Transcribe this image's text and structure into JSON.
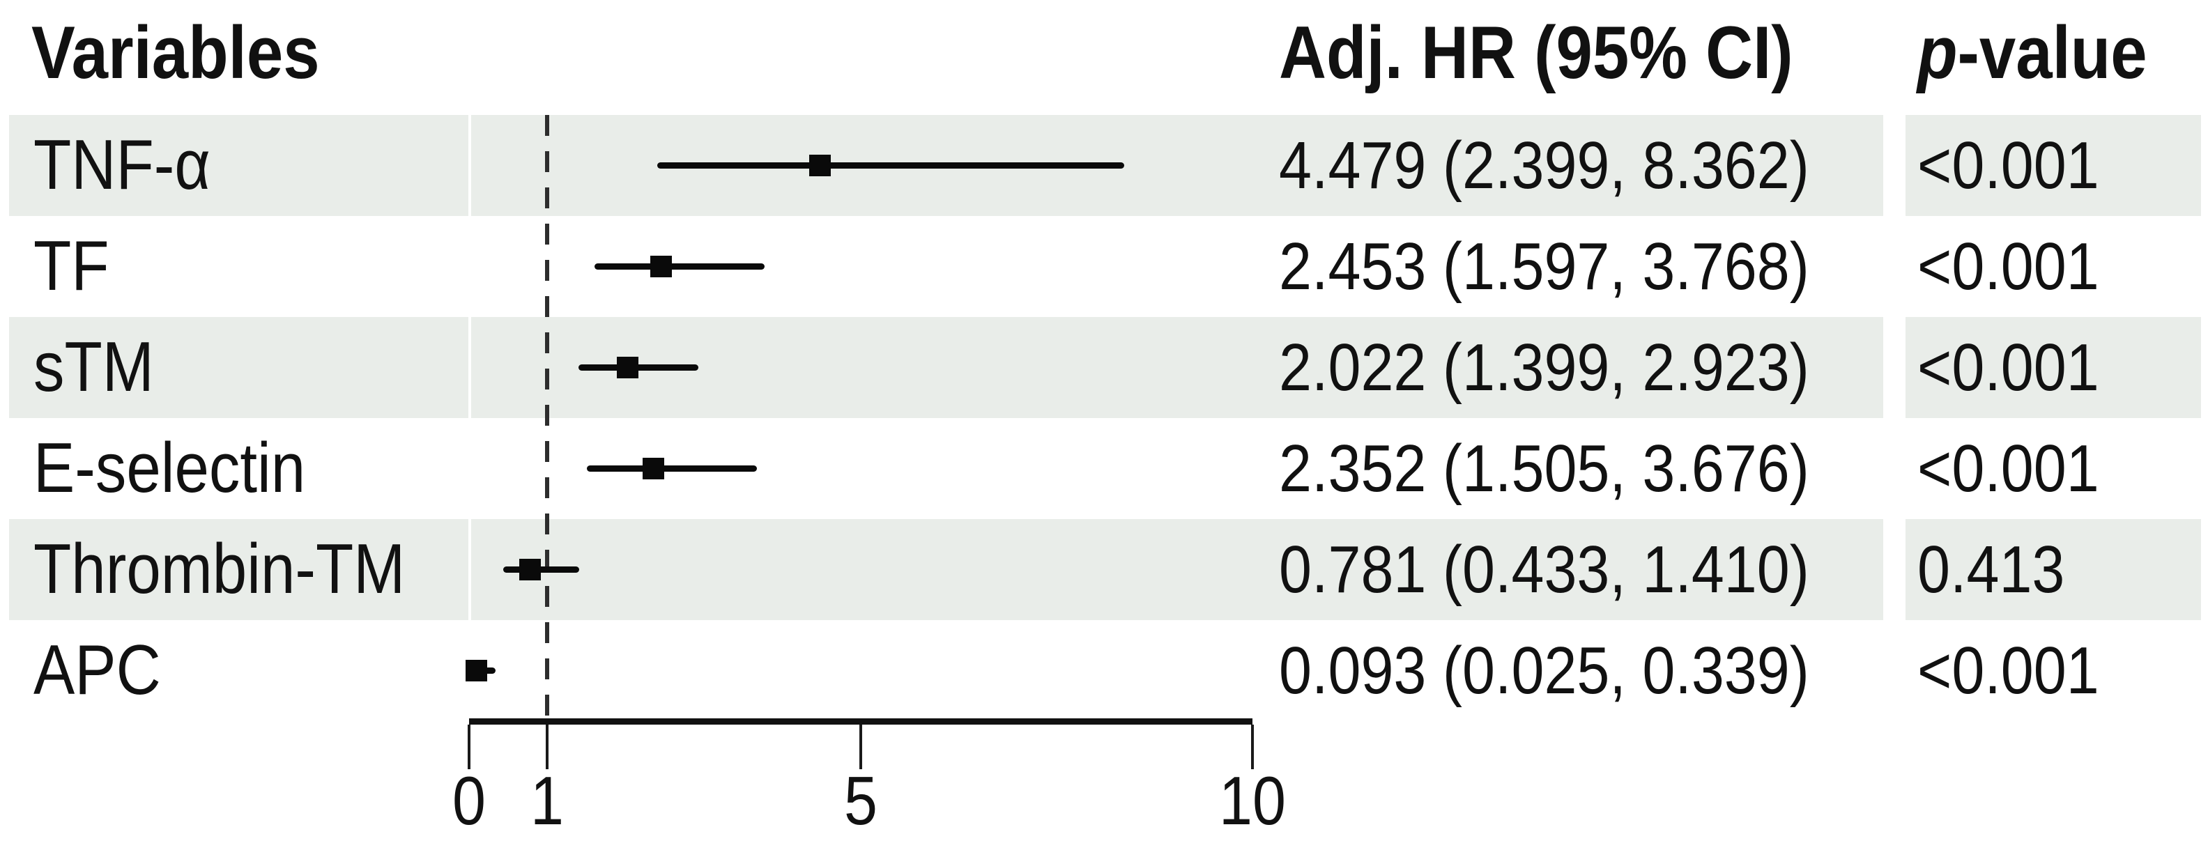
{
  "figure": {
    "background": "#ffffff",
    "stripe_color": "#e9ede9",
    "ink_color": "#111111"
  },
  "header": {
    "variables": "Variables",
    "adj_hr": "Adj. HR (95% CI)",
    "p_italic": "p",
    "p_rest": "-value"
  },
  "chart_data": {
    "type": "forest",
    "title": "",
    "columns": [
      "Variables",
      "Adj. HR (95% CI)",
      "p-value"
    ],
    "rows": [
      {
        "label": "TNF-α",
        "est": 4.479,
        "lo": 2.399,
        "hi": 8.362,
        "hr_ci": "4.479 (2.399, 8.362)",
        "p": "<0.001"
      },
      {
        "label": "TF",
        "est": 2.453,
        "lo": 1.597,
        "hi": 3.768,
        "hr_ci": "2.453 (1.597, 3.768)",
        "p": "<0.001"
      },
      {
        "label": "sTM",
        "est": 2.022,
        "lo": 1.399,
        "hi": 2.923,
        "hr_ci": "2.022 (1.399, 2.923)",
        "p": "<0.001"
      },
      {
        "label": "E-selectin",
        "est": 2.352,
        "lo": 1.505,
        "hi": 3.676,
        "hr_ci": "2.352 (1.505, 3.676)",
        "p": "<0.001"
      },
      {
        "label": "Thrombin-TM",
        "est": 0.781,
        "lo": 0.433,
        "hi": 1.41,
        "hr_ci": "0.781 (0.433, 1.410)",
        "p": "0.413"
      },
      {
        "label": "APC",
        "est": 0.093,
        "lo": 0.025,
        "hi": 0.339,
        "hr_ci": "0.093 (0.025, 0.339)",
        "p": "<0.001"
      }
    ],
    "axis": {
      "tick_labels": [
        "0",
        "1",
        "5",
        "10"
      ],
      "tick_values": [
        0,
        1,
        5,
        10
      ],
      "range": [
        0,
        10
      ],
      "reference_line": 1,
      "scale": "linear",
      "grid": false,
      "legend": "none"
    }
  }
}
